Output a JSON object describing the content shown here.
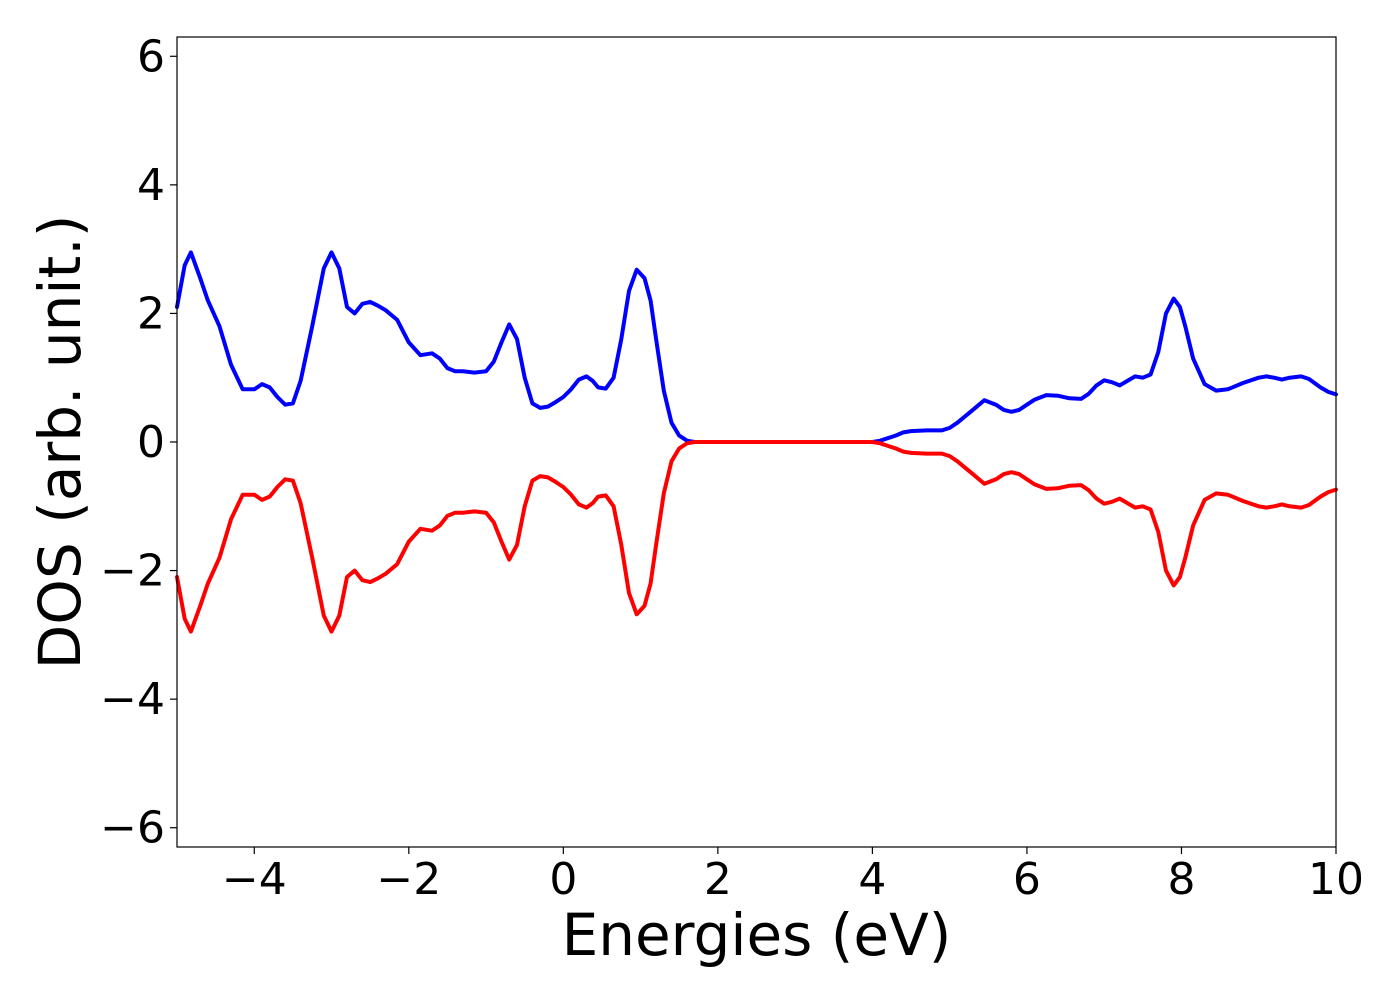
{
  "chart_data": {
    "type": "line",
    "title": "",
    "xlabel": "Energies (eV)",
    "ylabel": "DOS (arb. unit.)",
    "xlim": [
      -5,
      10
    ],
    "ylim": [
      -6.3,
      6.3
    ],
    "xticks": [
      -4,
      -2,
      0,
      2,
      4,
      6,
      8,
      10
    ],
    "xtick_labels": [
      "−4",
      "−2",
      "0",
      "2",
      "4",
      "6",
      "8",
      "10"
    ],
    "yticks": [
      -6,
      -4,
      -2,
      0,
      2,
      4,
      6
    ],
    "ytick_labels": [
      "−6",
      "−4",
      "−2",
      "0",
      "2",
      "4",
      "6"
    ],
    "grid": false,
    "legend": "none",
    "series": [
      {
        "color": "#0000ff",
        "x": [
          -5.0,
          -4.9,
          -4.82,
          -4.7,
          -4.6,
          -4.45,
          -4.3,
          -4.15,
          -4.0,
          -3.9,
          -3.8,
          -3.7,
          -3.6,
          -3.5,
          -3.4,
          -3.25,
          -3.1,
          -3.0,
          -2.9,
          -2.8,
          -2.7,
          -2.6,
          -2.5,
          -2.4,
          -2.3,
          -2.15,
          -2.0,
          -1.85,
          -1.7,
          -1.6,
          -1.5,
          -1.4,
          -1.3,
          -1.15,
          -1.0,
          -0.9,
          -0.8,
          -0.7,
          -0.6,
          -0.5,
          -0.4,
          -0.3,
          -0.2,
          -0.1,
          0.0,
          0.1,
          0.2,
          0.3,
          0.38,
          0.45,
          0.55,
          0.65,
          0.75,
          0.85,
          0.95,
          1.05,
          1.13,
          1.2,
          1.3,
          1.4,
          1.5,
          1.6,
          1.7,
          1.8,
          2.0,
          2.5,
          3.0,
          3.5,
          4.0,
          4.1,
          4.2,
          4.3,
          4.4,
          4.5,
          4.7,
          4.9,
          5.0,
          5.1,
          5.2,
          5.3,
          5.45,
          5.6,
          5.7,
          5.8,
          5.9,
          6.0,
          6.1,
          6.25,
          6.4,
          6.55,
          6.7,
          6.8,
          6.9,
          7.0,
          7.1,
          7.2,
          7.3,
          7.4,
          7.5,
          7.6,
          7.7,
          7.8,
          7.9,
          7.98,
          8.05,
          8.15,
          8.3,
          8.45,
          8.6,
          8.8,
          9.0,
          9.1,
          9.2,
          9.3,
          9.4,
          9.55,
          9.65,
          9.8,
          9.9,
          10.0
        ],
        "y": [
          2.1,
          2.75,
          2.95,
          2.55,
          2.2,
          1.8,
          1.2,
          0.82,
          0.82,
          0.9,
          0.85,
          0.7,
          0.58,
          0.6,
          0.95,
          1.8,
          2.7,
          2.95,
          2.7,
          2.1,
          2.0,
          2.15,
          2.18,
          2.12,
          2.05,
          1.9,
          1.55,
          1.35,
          1.38,
          1.3,
          1.15,
          1.1,
          1.1,
          1.08,
          1.1,
          1.25,
          1.55,
          1.83,
          1.6,
          1.0,
          0.6,
          0.53,
          0.55,
          0.62,
          0.7,
          0.82,
          0.97,
          1.02,
          0.95,
          0.85,
          0.83,
          1.0,
          1.6,
          2.35,
          2.68,
          2.55,
          2.2,
          1.6,
          0.8,
          0.3,
          0.1,
          0.02,
          0.0,
          0.0,
          0.0,
          0.0,
          0.0,
          0.0,
          0.0,
          0.02,
          0.06,
          0.1,
          0.15,
          0.17,
          0.18,
          0.18,
          0.22,
          0.3,
          0.4,
          0.5,
          0.65,
          0.58,
          0.5,
          0.47,
          0.5,
          0.58,
          0.66,
          0.73,
          0.72,
          0.68,
          0.67,
          0.75,
          0.88,
          0.96,
          0.93,
          0.88,
          0.95,
          1.02,
          1.0,
          1.05,
          1.4,
          2.0,
          2.23,
          2.1,
          1.8,
          1.3,
          0.9,
          0.8,
          0.82,
          0.92,
          1.0,
          1.02,
          1.0,
          0.97,
          1.0,
          1.02,
          0.98,
          0.85,
          0.78,
          0.74
        ]
      },
      {
        "color": "#ff0000",
        "x": [
          -5.0,
          -4.9,
          -4.82,
          -4.7,
          -4.6,
          -4.45,
          -4.3,
          -4.15,
          -4.0,
          -3.9,
          -3.8,
          -3.7,
          -3.6,
          -3.5,
          -3.4,
          -3.25,
          -3.1,
          -3.0,
          -2.9,
          -2.8,
          -2.7,
          -2.6,
          -2.5,
          -2.4,
          -2.3,
          -2.15,
          -2.0,
          -1.85,
          -1.7,
          -1.6,
          -1.5,
          -1.4,
          -1.3,
          -1.15,
          -1.0,
          -0.9,
          -0.8,
          -0.7,
          -0.6,
          -0.5,
          -0.4,
          -0.3,
          -0.2,
          -0.1,
          0.0,
          0.1,
          0.2,
          0.3,
          0.38,
          0.45,
          0.55,
          0.65,
          0.75,
          0.85,
          0.95,
          1.05,
          1.13,
          1.2,
          1.3,
          1.4,
          1.5,
          1.6,
          1.7,
          1.8,
          2.0,
          2.5,
          3.0,
          3.5,
          4.0,
          4.1,
          4.2,
          4.3,
          4.4,
          4.5,
          4.7,
          4.9,
          5.0,
          5.1,
          5.2,
          5.3,
          5.45,
          5.6,
          5.7,
          5.8,
          5.9,
          6.0,
          6.1,
          6.25,
          6.4,
          6.55,
          6.7,
          6.8,
          6.9,
          7.0,
          7.1,
          7.2,
          7.3,
          7.4,
          7.5,
          7.6,
          7.7,
          7.8,
          7.9,
          7.98,
          8.05,
          8.15,
          8.3,
          8.45,
          8.6,
          8.8,
          9.0,
          9.1,
          9.2,
          9.3,
          9.4,
          9.55,
          9.65,
          9.8,
          9.9,
          10.0
        ],
        "y": [
          -2.1,
          -2.75,
          -2.95,
          -2.55,
          -2.2,
          -1.8,
          -1.2,
          -0.82,
          -0.82,
          -0.9,
          -0.85,
          -0.7,
          -0.58,
          -0.6,
          -0.95,
          -1.8,
          -2.7,
          -2.95,
          -2.7,
          -2.1,
          -2.0,
          -2.15,
          -2.18,
          -2.12,
          -2.05,
          -1.9,
          -1.55,
          -1.35,
          -1.38,
          -1.3,
          -1.15,
          -1.1,
          -1.1,
          -1.08,
          -1.1,
          -1.25,
          -1.55,
          -1.83,
          -1.6,
          -1.0,
          -0.6,
          -0.53,
          -0.55,
          -0.62,
          -0.7,
          -0.82,
          -0.97,
          -1.02,
          -0.95,
          -0.85,
          -0.83,
          -1.0,
          -1.6,
          -2.35,
          -2.68,
          -2.55,
          -2.2,
          -1.6,
          -0.8,
          -0.3,
          -0.1,
          -0.02,
          0.0,
          0.0,
          0.0,
          0.0,
          0.0,
          0.0,
          0.0,
          -0.02,
          -0.06,
          -0.1,
          -0.15,
          -0.17,
          -0.18,
          -0.18,
          -0.22,
          -0.3,
          -0.4,
          -0.5,
          -0.65,
          -0.58,
          -0.5,
          -0.47,
          -0.5,
          -0.58,
          -0.66,
          -0.73,
          -0.72,
          -0.68,
          -0.67,
          -0.75,
          -0.88,
          -0.96,
          -0.93,
          -0.88,
          -0.95,
          -1.02,
          -1.0,
          -1.05,
          -1.4,
          -2.0,
          -2.23,
          -2.1,
          -1.8,
          -1.3,
          -0.9,
          -0.8,
          -0.82,
          -0.92,
          -1.0,
          -1.02,
          -1.0,
          -0.97,
          -1.0,
          -1.02,
          -0.98,
          -0.85,
          -0.78,
          -0.74
        ]
      }
    ]
  }
}
